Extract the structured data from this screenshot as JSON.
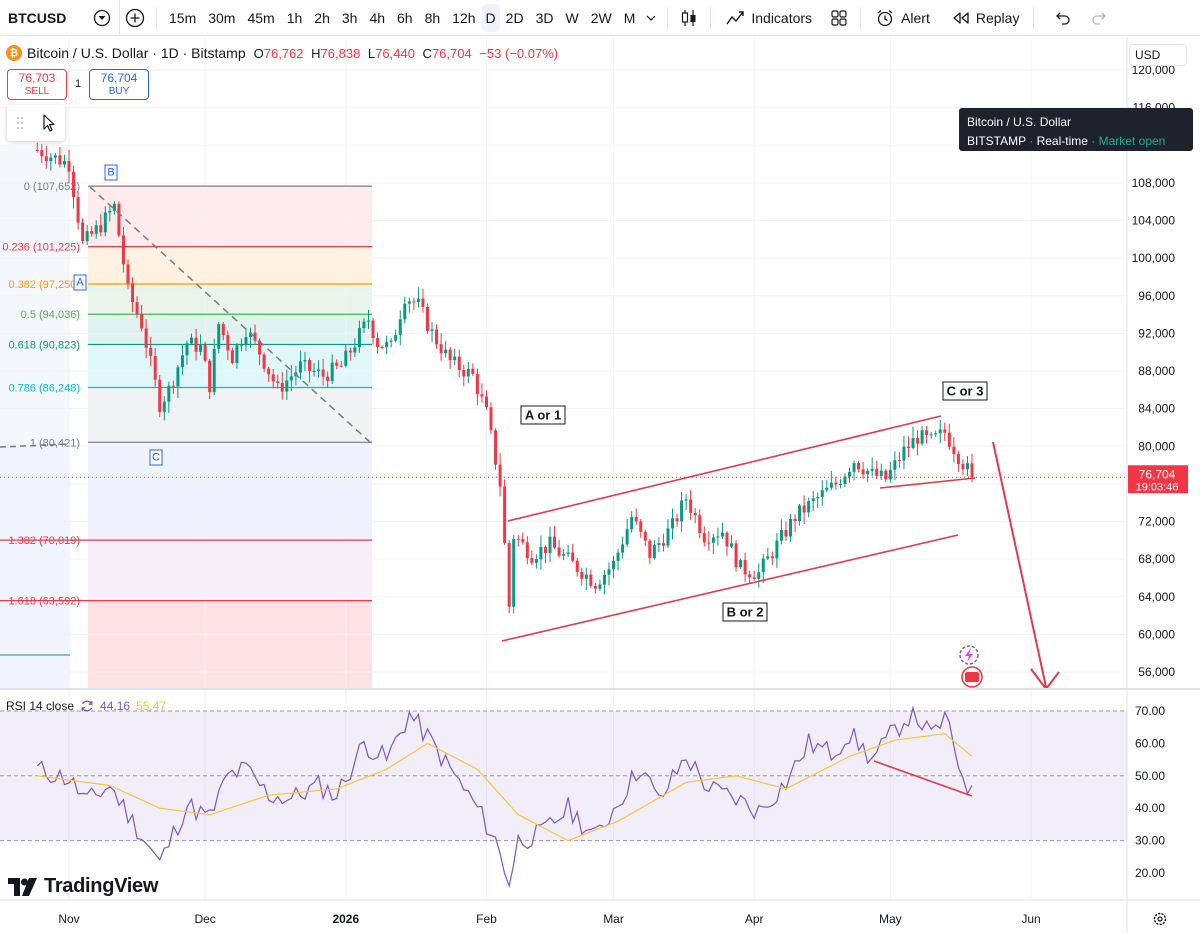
{
  "toolbar": {
    "symbol": "BTCUSD",
    "intervals": [
      "15m",
      "30m",
      "45m",
      "1h",
      "2h",
      "3h",
      "4h",
      "6h",
      "8h",
      "12h",
      "D",
      "2D",
      "3D",
      "W",
      "2W",
      "M"
    ],
    "active_interval": "D",
    "indicators_label": "Indicators",
    "alert_label": "Alert",
    "replay_label": "Replay"
  },
  "legend": {
    "title": "Bitcoin / U.S. Dollar · 1D · Bitstamp",
    "o_label": "O",
    "o": "76,762",
    "h_label": "H",
    "h": "76,838",
    "l_label": "L",
    "l": "76,440",
    "c_label": "C",
    "c": "76,704",
    "change": "−53 (−0.07%)"
  },
  "trade": {
    "sell_price": "76,703",
    "sell_label": "SELL",
    "buy_price": "76,704",
    "buy_label": "BUY",
    "qty": "1"
  },
  "tooltip": {
    "title": "Bitcoin / U.S. Dollar",
    "exchange": "BITSTAMP",
    "feed": "Real-time",
    "status": "Market open"
  },
  "currency": "USD",
  "last_price": {
    "value": "76,704",
    "countdown": "19:03:46"
  },
  "rsi_legend": {
    "label": "RSI 14 close",
    "rsi": "44.16",
    "ma": "55.47"
  },
  "brand": "TradingView",
  "annotations": {
    "a_or_1": "A or 1",
    "b_or_2": "B or 2",
    "c_or_3": "C or 3",
    "fib_pivot_a": "A",
    "fib_pivot_b": "B",
    "fib_pivot_c": "C"
  },
  "colors": {
    "up": "#089981",
    "down": "#f23645",
    "channel": "#e03a4e",
    "rsi_line": "#7e57c2",
    "rsi_ma": "#f5c542"
  },
  "chart_data": [
    {
      "type": "candlestick",
      "title": "Bitcoin / U.S. Dollar · 1D · Bitstamp",
      "ylim": [
        53000,
        121000
      ],
      "yticks": [
        "120,000",
        "116,000",
        "112,000",
        "108,000",
        "104,000",
        "100,000",
        "96,000",
        "92,000",
        "88,000",
        "84,000",
        "80,000",
        "76,000",
        "72,000",
        "68,000",
        "64,000",
        "60,000",
        "56,000"
      ],
      "x_ticks": [
        "Nov",
        "Dec",
        "2026",
        "Feb",
        "Mar",
        "Apr",
        "May",
        "Jun"
      ],
      "fib_levels": [
        {
          "ratio": "0",
          "value": 107652,
          "label": "0 (107,652)"
        },
        {
          "ratio": "0.236",
          "value": 101225,
          "label": "0.236 (101,225)"
        },
        {
          "ratio": "0.382",
          "value": 97250,
          "label": "0.382 (97,250)"
        },
        {
          "ratio": "0.5",
          "value": 94036,
          "label": "0.5 (94,036)"
        },
        {
          "ratio": "0.618",
          "value": 90823,
          "label": "0.618 (90,823)"
        },
        {
          "ratio": "0.786",
          "value": 86248,
          "label": "0.786 (86,248)"
        },
        {
          "ratio": "1",
          "value": 80421,
          "label": "1 (80,421)"
        },
        {
          "ratio": "1.382",
          "value": 70019,
          "label": "1.382 (70,019)"
        },
        {
          "ratio": "1.618",
          "value": 63592,
          "label": "1.618 (63,592)"
        }
      ],
      "close_path": [
        {
          "date": "2025-10-25",
          "close": 111500
        },
        {
          "date": "2025-11-01",
          "close": 110000
        },
        {
          "date": "2025-11-04",
          "close": 101500
        },
        {
          "date": "2025-11-08",
          "close": 103500
        },
        {
          "date": "2025-11-11",
          "close": 105500
        },
        {
          "date": "2025-11-14",
          "close": 96500
        },
        {
          "date": "2025-11-17",
          "close": 93000
        },
        {
          "date": "2025-11-21",
          "close": 84500
        },
        {
          "date": "2025-11-23",
          "close": 86000
        },
        {
          "date": "2025-11-27",
          "close": 91000
        },
        {
          "date": "2025-11-30",
          "close": 90500
        },
        {
          "date": "2025-12-02",
          "close": 86500
        },
        {
          "date": "2025-12-04",
          "close": 93000
        },
        {
          "date": "2025-12-07",
          "close": 89500
        },
        {
          "date": "2025-12-10",
          "close": 92500
        },
        {
          "date": "2025-12-13",
          "close": 90000
        },
        {
          "date": "2025-12-17",
          "close": 86000
        },
        {
          "date": "2025-12-22",
          "close": 88500
        },
        {
          "date": "2025-12-27",
          "close": 87500
        },
        {
          "date": "2025-12-31",
          "close": 88500
        },
        {
          "date": "2026-01-03",
          "close": 91000
        },
        {
          "date": "2026-01-06",
          "close": 93500
        },
        {
          "date": "2026-01-08",
          "close": 91000
        },
        {
          "date": "2026-01-11",
          "close": 90500
        },
        {
          "date": "2026-01-14",
          "close": 96000
        },
        {
          "date": "2026-01-17",
          "close": 95000
        },
        {
          "date": "2026-01-20",
          "close": 92000
        },
        {
          "date": "2026-01-24",
          "close": 89000
        },
        {
          "date": "2026-01-29",
          "close": 87500
        },
        {
          "date": "2026-02-01",
          "close": 83500
        },
        {
          "date": "2026-02-04",
          "close": 76000
        },
        {
          "date": "2026-02-06",
          "close": 63000
        },
        {
          "date": "2026-02-07",
          "close": 70500
        },
        {
          "date": "2026-02-11",
          "close": 68500
        },
        {
          "date": "2026-02-15",
          "close": 69500
        },
        {
          "date": "2026-02-20",
          "close": 67500
        },
        {
          "date": "2026-02-25",
          "close": 65500
        },
        {
          "date": "2026-03-01",
          "close": 67500
        },
        {
          "date": "2026-03-05",
          "close": 72500
        },
        {
          "date": "2026-03-09",
          "close": 68500
        },
        {
          "date": "2026-03-14",
          "close": 71500
        },
        {
          "date": "2026-03-17",
          "close": 74500
        },
        {
          "date": "2026-03-21",
          "close": 70500
        },
        {
          "date": "2026-03-25",
          "close": 71000
        },
        {
          "date": "2026-03-29",
          "close": 67000
        },
        {
          "date": "2026-04-02",
          "close": 66500
        },
        {
          "date": "2026-04-06",
          "close": 69500
        },
        {
          "date": "2026-04-10",
          "close": 72500
        },
        {
          "date": "2026-04-15",
          "close": 74500
        },
        {
          "date": "2026-04-19",
          "close": 76000
        },
        {
          "date": "2026-04-23",
          "close": 78500
        },
        {
          "date": "2026-04-27",
          "close": 77000
        },
        {
          "date": "2026-04-30",
          "close": 76500
        },
        {
          "date": "2026-05-04",
          "close": 79500
        },
        {
          "date": "2026-05-07",
          "close": 81000
        },
        {
          "date": "2026-05-10",
          "close": 80500
        },
        {
          "date": "2026-05-13",
          "close": 81500
        },
        {
          "date": "2026-05-16",
          "close": 79000
        },
        {
          "date": "2026-05-19",
          "close": 76704
        }
      ]
    },
    {
      "type": "line",
      "title": "RSI 14 close",
      "ylim": [
        15,
        72
      ],
      "yticks": [
        "70.00",
        "60.00",
        "50.00",
        "40.00",
        "30.00",
        "20.00"
      ],
      "bands": {
        "upper": 70,
        "middle": 50,
        "lower": 30
      },
      "series": [
        {
          "name": "RSI",
          "points": [
            {
              "date": "2025-10-25",
              "value": 52
            },
            {
              "date": "2025-11-01",
              "value": 49
            },
            {
              "date": "2025-11-05",
              "value": 42
            },
            {
              "date": "2025-11-10",
              "value": 47
            },
            {
              "date": "2025-11-15",
              "value": 36
            },
            {
              "date": "2025-11-21",
              "value": 23
            },
            {
              "date": "2025-11-27",
              "value": 41
            },
            {
              "date": "2025-12-02",
              "value": 37
            },
            {
              "date": "2025-12-06",
              "value": 50
            },
            {
              "date": "2025-12-10",
              "value": 52
            },
            {
              "date": "2025-12-15",
              "value": 44
            },
            {
              "date": "2025-12-20",
              "value": 43
            },
            {
              "date": "2025-12-26",
              "value": 47
            },
            {
              "date": "2025-12-30",
              "value": 44
            },
            {
              "date": "2026-01-05",
              "value": 60
            },
            {
              "date": "2026-01-10",
              "value": 55
            },
            {
              "date": "2026-01-15",
              "value": 69
            },
            {
              "date": "2026-01-19",
              "value": 62
            },
            {
              "date": "2026-01-24",
              "value": 52
            },
            {
              "date": "2026-01-30",
              "value": 40
            },
            {
              "date": "2026-02-03",
              "value": 30
            },
            {
              "date": "2026-02-06",
              "value": 17
            },
            {
              "date": "2026-02-08",
              "value": 30
            },
            {
              "date": "2026-02-13",
              "value": 32
            },
            {
              "date": "2026-02-19",
              "value": 40
            },
            {
              "date": "2026-02-25",
              "value": 31
            },
            {
              "date": "2026-03-02",
              "value": 42
            },
            {
              "date": "2026-03-07",
              "value": 53
            },
            {
              "date": "2026-03-11",
              "value": 42
            },
            {
              "date": "2026-03-17",
              "value": 56
            },
            {
              "date": "2026-03-22",
              "value": 46
            },
            {
              "date": "2026-03-28",
              "value": 43
            },
            {
              "date": "2026-04-02",
              "value": 39
            },
            {
              "date": "2026-04-08",
              "value": 48
            },
            {
              "date": "2026-04-13",
              "value": 60
            },
            {
              "date": "2026-04-18",
              "value": 57
            },
            {
              "date": "2026-04-22",
              "value": 63
            },
            {
              "date": "2026-04-27",
              "value": 55
            },
            {
              "date": "2026-05-02",
              "value": 64
            },
            {
              "date": "2026-05-06",
              "value": 70
            },
            {
              "date": "2026-05-10",
              "value": 62
            },
            {
              "date": "2026-05-13",
              "value": 68
            },
            {
              "date": "2026-05-16",
              "value": 54
            },
            {
              "date": "2026-05-19",
              "value": 44
            }
          ]
        },
        {
          "name": "RSI-based MA",
          "points": [
            {
              "date": "2025-10-25",
              "value": 50
            },
            {
              "date": "2025-11-10",
              "value": 47
            },
            {
              "date": "2025-11-21",
              "value": 40
            },
            {
              "date": "2025-12-02",
              "value": 38
            },
            {
              "date": "2025-12-15",
              "value": 44
            },
            {
              "date": "2025-12-30",
              "value": 46
            },
            {
              "date": "2026-01-10",
              "value": 52
            },
            {
              "date": "2026-01-19",
              "value": 60
            },
            {
              "date": "2026-01-30",
              "value": 52
            },
            {
              "date": "2026-02-08",
              "value": 38
            },
            {
              "date": "2026-02-19",
              "value": 30
            },
            {
              "date": "2026-03-02",
              "value": 36
            },
            {
              "date": "2026-03-17",
              "value": 48
            },
            {
              "date": "2026-03-28",
              "value": 50
            },
            {
              "date": "2026-04-08",
              "value": 46
            },
            {
              "date": "2026-04-22",
              "value": 56
            },
            {
              "date": "2026-05-02",
              "value": 61
            },
            {
              "date": "2026-05-13",
              "value": 63
            },
            {
              "date": "2026-05-19",
              "value": 56
            }
          ]
        }
      ]
    }
  ]
}
